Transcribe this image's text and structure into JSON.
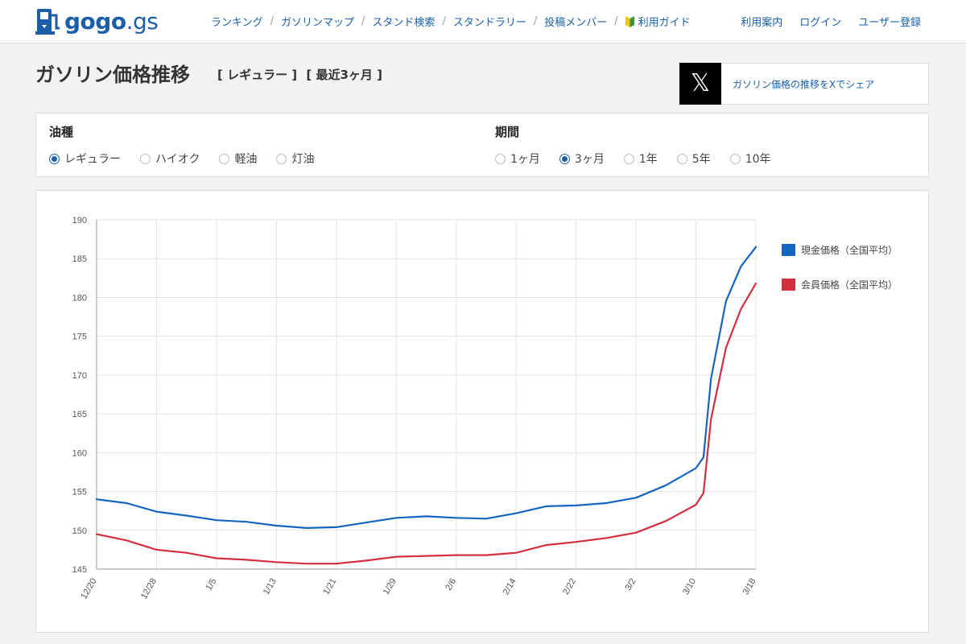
{
  "header": {
    "logo": "gogo.gs",
    "logo_main": "gogo",
    "logo_tld": ".gs",
    "nav": [
      "ランキング",
      "ガソリンマップ",
      "スタンド検索",
      "スタンドラリー",
      "投稿メンバー",
      "利用ガイド"
    ],
    "account": [
      "利用案内",
      "ログイン",
      "ユーザー登録"
    ]
  },
  "page": {
    "title": "ガソリン価格推移",
    "fuel_tag": "[ レギュラー ]",
    "period_tag": "[ 最近3ヶ月 ]",
    "share_text": "ガソリン価格の推移をXでシェア",
    "share_icon": "𝕏"
  },
  "filters": {
    "fuel": {
      "label": "油種",
      "options": [
        "レギュラー",
        "ハイオク",
        "軽油",
        "灯油"
      ],
      "selected": "レギュラー"
    },
    "period": {
      "label": "期間",
      "options": [
        "1ヶ月",
        "3ヶ月",
        "1年",
        "5年",
        "10年"
      ],
      "selected": "3ヶ月"
    }
  },
  "chart_data": {
    "type": "line",
    "title": "",
    "xlabel": "",
    "ylabel": "",
    "ylim": [
      145,
      190
    ],
    "yticks": [
      145,
      150,
      155,
      160,
      165,
      170,
      175,
      180,
      185,
      190
    ],
    "x": [
      "12/20",
      "12/24",
      "12/28",
      "1/1",
      "1/5",
      "1/9",
      "1/13",
      "1/17",
      "1/21",
      "1/25",
      "1/29",
      "2/2",
      "2/6",
      "2/10",
      "2/14",
      "2/18",
      "2/22",
      "2/26",
      "3/2",
      "3/6",
      "3/10",
      "3/11",
      "3/12",
      "3/14",
      "3/16",
      "3/18"
    ],
    "xticks": [
      "12/20",
      "12/28",
      "1/5",
      "1/13",
      "1/21",
      "1/29",
      "2/6",
      "2/14",
      "2/22",
      "3/2",
      "3/10",
      "3/18"
    ],
    "grid": true,
    "legend_position": "right",
    "series": [
      {
        "name": "現金価格（全国平均）",
        "color": "#1565c0",
        "values": [
          154.0,
          153.5,
          152.4,
          151.9,
          151.3,
          151.1,
          150.6,
          150.3,
          150.4,
          151.0,
          151.6,
          151.8,
          151.6,
          151.5,
          152.2,
          153.1,
          153.2,
          153.5,
          154.2,
          155.8,
          158.0,
          159.4,
          169.5,
          179.5,
          184.0,
          186.5
        ]
      },
      {
        "name": "会員価格（全国平均）",
        "color": "#d32f3f",
        "values": [
          149.5,
          148.7,
          147.5,
          147.1,
          146.4,
          146.2,
          145.9,
          145.7,
          145.7,
          146.1,
          146.6,
          146.7,
          146.8,
          146.8,
          147.1,
          148.1,
          148.5,
          149.0,
          149.7,
          151.2,
          153.3,
          154.8,
          164.3,
          173.5,
          178.5,
          181.8
        ]
      }
    ]
  }
}
